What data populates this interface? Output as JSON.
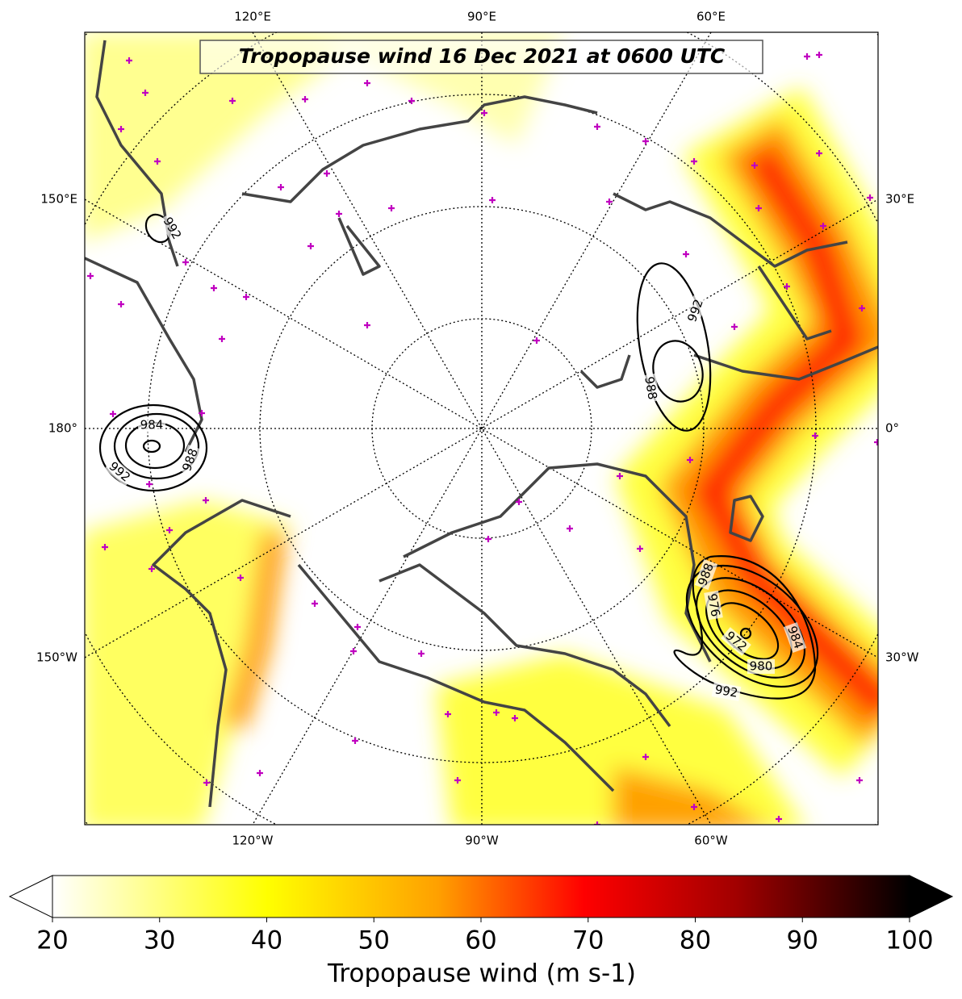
{
  "title": "Tropopause wind 16 Dec 2021 at 0600 UTC",
  "longitude_labels": {
    "top": [
      "120°E",
      "90°E",
      "60°E"
    ],
    "left": [
      "150°E",
      "180°",
      "150°W"
    ],
    "right": [
      "30°E",
      "0°",
      "30°W"
    ],
    "bottom": [
      "120°W",
      "90°W",
      "60°W"
    ]
  },
  "contour_labels": [
    992,
    984,
    988,
    992,
    992,
    988,
    988,
    976,
    972,
    980,
    984,
    992
  ],
  "colorbar": {
    "label": "Tropopause wind (m s-1)",
    "vlim": [
      20,
      100
    ],
    "ticks": [
      20,
      30,
      40,
      50,
      60,
      70,
      80,
      90,
      100
    ]
  }
}
